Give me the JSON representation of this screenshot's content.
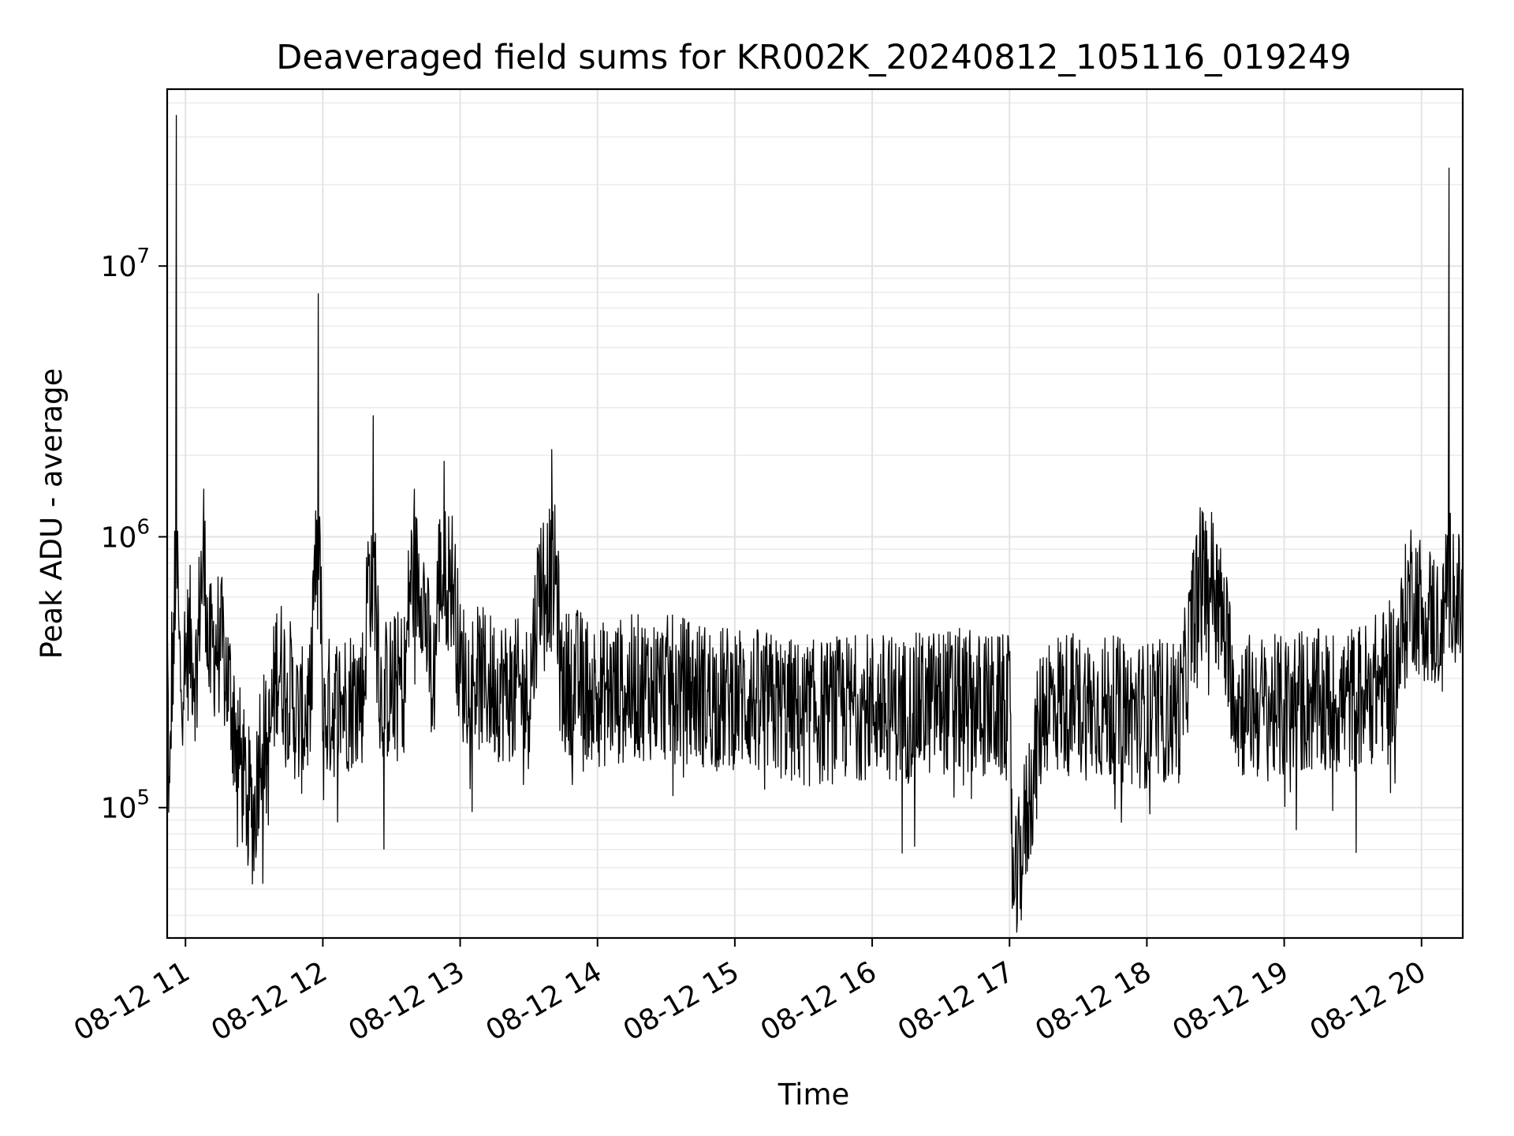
{
  "chart_data": {
    "type": "line",
    "title": "Deaveraged field sums for KR002K_20240812_105116_019249",
    "xlabel": "Time",
    "ylabel": "Peak ADU - average",
    "yscale": "log",
    "ylim": [
      33000,
      45000000
    ],
    "xlim": [
      "2024-08-12 10:52",
      "2024-08-12 20:18"
    ],
    "grid": true,
    "line_color": "#000000",
    "x_ticks": [
      "08-12 11",
      "08-12 12",
      "08-12 13",
      "08-12 14",
      "08-12 15",
      "08-12 16",
      "08-12 17",
      "08-12 18",
      "08-12 19",
      "08-12 20"
    ],
    "y_ticks": [
      {
        "base": "10",
        "exp": "5",
        "value": 100000
      },
      {
        "base": "10",
        "exp": "6",
        "value": 1000000
      },
      {
        "base": "10",
        "exp": "7",
        "value": 10000000
      }
    ],
    "series": [
      {
        "x": [
          "2024-08-12 10:52",
          "2024-08-12 10:53",
          "2024-08-12 10:54",
          "2024-08-12 10:55",
          "2024-08-12 10:56",
          "2024-08-12 10:57",
          "2024-08-12 10:58",
          "2024-08-12 11:00",
          "2024-08-12 11:02",
          "2024-08-12 11:05",
          "2024-08-12 11:08",
          "2024-08-12 11:10",
          "2024-08-12 11:13",
          "2024-08-12 11:15",
          "2024-08-12 11:20",
          "2024-08-12 11:25",
          "2024-08-12 11:30",
          "2024-08-12 11:33",
          "2024-08-12 11:36",
          "2024-08-12 11:40",
          "2024-08-12 11:45",
          "2024-08-12 11:50",
          "2024-08-12 11:55",
          "2024-08-12 11:58",
          "2024-08-12 12:00",
          "2024-08-12 12:02",
          "2024-08-12 12:10",
          "2024-08-12 12:18",
          "2024-08-12 12:22",
          "2024-08-12 12:25",
          "2024-08-12 12:30",
          "2024-08-12 12:36",
          "2024-08-12 12:40",
          "2024-08-12 12:48",
          "2024-08-12 12:53",
          "2024-08-12 13:00",
          "2024-08-12 13:15",
          "2024-08-12 13:30",
          "2024-08-12 13:40",
          "2024-08-12 13:44",
          "2024-08-12 13:50",
          "2024-08-12 14:00",
          "2024-08-12 14:20",
          "2024-08-12 14:40",
          "2024-08-12 14:55",
          "2024-08-12 15:00",
          "2024-08-12 15:15",
          "2024-08-12 15:30",
          "2024-08-12 15:45",
          "2024-08-12 16:00",
          "2024-08-12 16:15",
          "2024-08-12 16:30",
          "2024-08-12 16:45",
          "2024-08-12 17:00",
          "2024-08-12 17:02",
          "2024-08-12 17:15",
          "2024-08-12 17:30",
          "2024-08-12 17:45",
          "2024-08-12 18:00",
          "2024-08-12 18:15",
          "2024-08-12 18:25",
          "2024-08-12 18:40",
          "2024-08-12 19:00",
          "2024-08-12 19:05",
          "2024-08-12 19:20",
          "2024-08-12 19:35",
          "2024-08-12 19:45",
          "2024-08-12 19:50",
          "2024-08-12 19:55",
          "2024-08-12 20:00",
          "2024-08-12 20:05",
          "2024-08-12 20:10",
          "2024-08-12 20:12",
          "2024-08-12 20:15",
          "2024-08-12 20:18"
        ],
        "values": [
          450000,
          80000,
          350000,
          300000,
          36000000,
          400000,
          300000,
          350000,
          420000,
          300000,
          1500000,
          350000,
          400000,
          420000,
          250000,
          130000,
          90000,
          200000,
          150000,
          350000,
          280000,
          200000,
          250000,
          7900000,
          180000,
          230000,
          250000,
          270000,
          2800000,
          260000,
          280000,
          300000,
          1500000,
          250000,
          1900000,
          320000,
          280000,
          260000,
          2100000,
          280000,
          300000,
          260000,
          280000,
          270000,
          250000,
          260000,
          240000,
          220000,
          230000,
          240000,
          230000,
          250000,
          240000,
          230000,
          45000,
          250000,
          240000,
          230000,
          220000,
          230000,
          1050000,
          240000,
          230000,
          250000,
          240000,
          260000,
          300000,
          350000,
          650000,
          550000,
          500000,
          450000,
          23000000,
          520000,
          600000
        ]
      }
    ]
  }
}
